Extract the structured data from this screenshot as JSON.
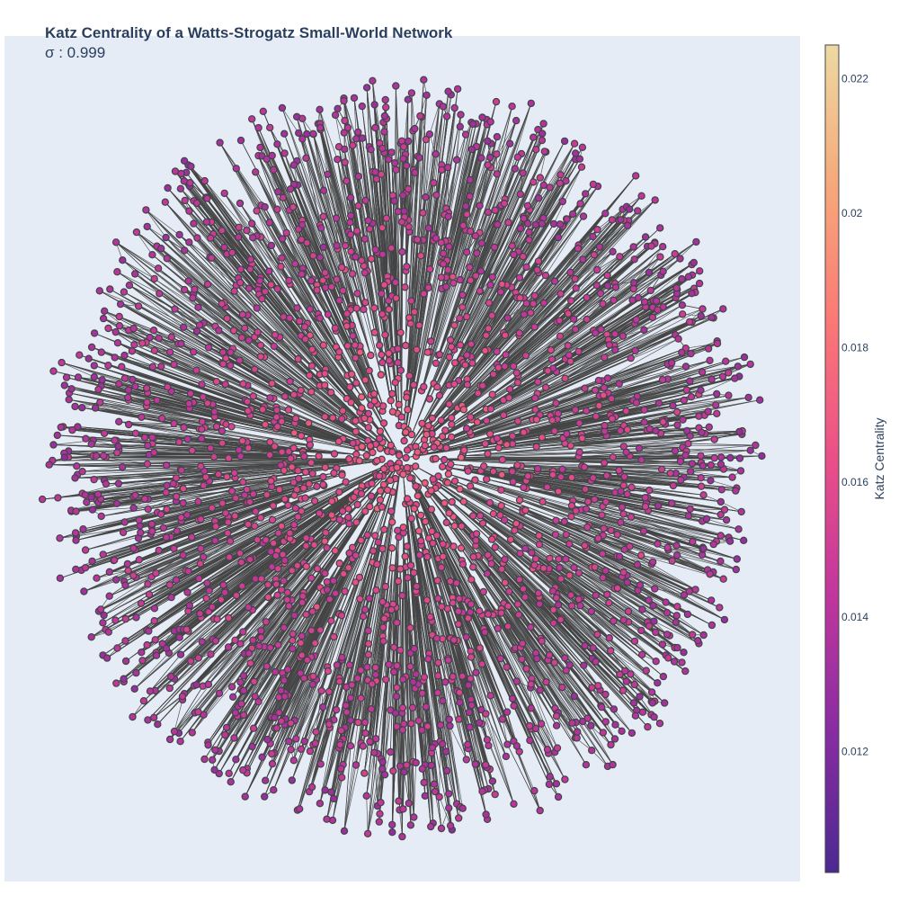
{
  "chart_data": {
    "type": "scatter",
    "subtype": "network-graph",
    "title": "Katz Centrality of a Watts-Strogatz Small-World Network",
    "subtitle": "σ : 0.999",
    "colorbar": {
      "title": "Katz Centrality",
      "range": [
        0.0102,
        0.0225
      ],
      "ticks": [
        0.012,
        0.014,
        0.016,
        0.018,
        0.02,
        0.022
      ],
      "tick_labels": [
        "0.012",
        "0.014",
        "0.016",
        "0.018",
        "0.02",
        "0.022"
      ],
      "colorscale": [
        "#4b2991",
        "#872ca2",
        "#c0369d",
        "#ea4f88",
        "#fa7876",
        "#f6a97a",
        "#edd9a3"
      ]
    },
    "grid": false,
    "axes_visible": false,
    "colors": {
      "plot_background": "#e5ecf6",
      "edge": "#444444",
      "node_outline": "#444444",
      "title_text": "#2a3f5f"
    }
  }
}
